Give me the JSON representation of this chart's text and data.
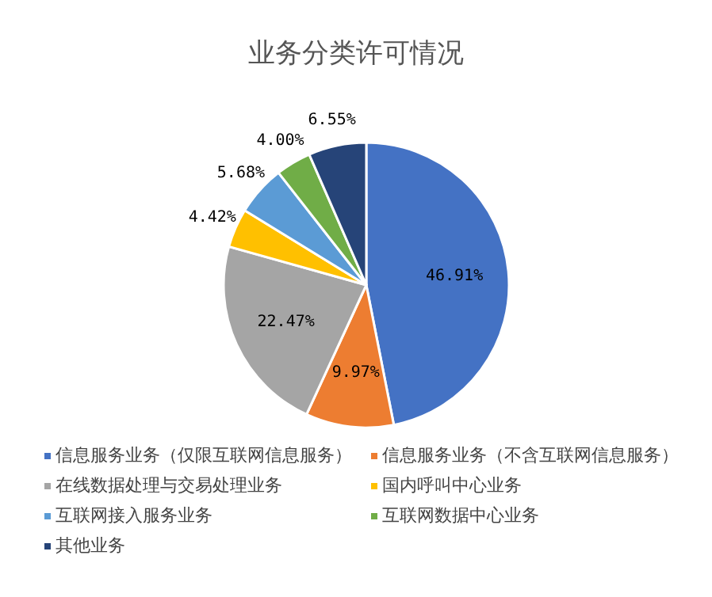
{
  "chart_data": {
    "type": "pie",
    "title": "业务分类许可情况",
    "categories": [
      "信息服务业务（仅限互联网信息服务）",
      "信息服务业务（不含互联网信息服务）",
      "在线数据处理与交易处理业务",
      "国内呼叫中心业务",
      "互联网接入服务业务",
      "互联网数据中心业务",
      "其他业务"
    ],
    "values": [
      46.91,
      9.97,
      22.47,
      4.42,
      5.68,
      4.0,
      6.55
    ],
    "value_labels": [
      "46.91%",
      "9.97%",
      "22.47%",
      "4.42%",
      "5.68%",
      "4.00%",
      "6.55%"
    ],
    "colors": [
      "#4472c4",
      "#ed7d31",
      "#a5a5a5",
      "#ffc000",
      "#5b9bd5",
      "#70ad47",
      "#264478"
    ],
    "legend": "bottom"
  }
}
